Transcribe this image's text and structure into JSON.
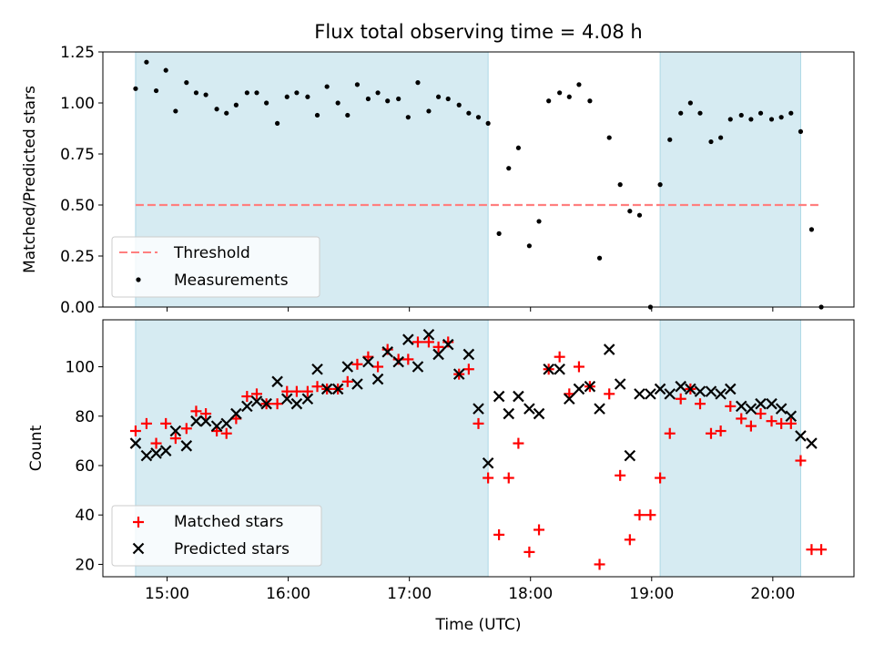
{
  "chart_data": [
    {
      "type": "scatter",
      "title": "Flux total observing time = 4.08 h",
      "xlabel": "",
      "ylabel": "Matched/Predicted stars",
      "xlim_hours": [
        14.47,
        20.67
      ],
      "ylim": [
        0,
        1.25
      ],
      "yticks": [
        0.0,
        0.25,
        0.5,
        0.75,
        1.0,
        1.25
      ],
      "ytick_labels": [
        "0.00",
        "0.25",
        "0.50",
        "0.75",
        "1.00",
        "1.25"
      ],
      "shaded_intervals_hours": [
        [
          14.74,
          17.65
        ],
        [
          19.07,
          20.23
        ]
      ],
      "threshold": {
        "name": "Threshold",
        "y": 0.5,
        "x_range_hours": [
          14.74,
          20.4
        ],
        "color": "#ff7f7f"
      },
      "legend": {
        "position": "lower-left",
        "entries": [
          "Threshold",
          "Measurements"
        ]
      },
      "series": [
        {
          "name": "Measurements",
          "color": "#000000",
          "marker": "dot",
          "x_hours": [
            14.74,
            14.83,
            14.91,
            14.99,
            15.07,
            15.16,
            15.24,
            15.32,
            15.41,
            15.49,
            15.57,
            15.66,
            15.74,
            15.82,
            15.91,
            15.99,
            16.07,
            16.16,
            16.24,
            16.32,
            16.41,
            16.49,
            16.57,
            16.66,
            16.74,
            16.82,
            16.91,
            16.99,
            17.07,
            17.16,
            17.24,
            17.32,
            17.41,
            17.49,
            17.57,
            17.65,
            17.74,
            17.82,
            17.9,
            17.99,
            18.07,
            18.15,
            18.24,
            18.32,
            18.4,
            18.49,
            18.57,
            18.65,
            18.74,
            18.82,
            18.9,
            18.99,
            19.07,
            19.15,
            19.24,
            19.32,
            19.4,
            19.49,
            19.57,
            19.65,
            19.74,
            19.82,
            19.9,
            19.99,
            20.07,
            20.15,
            20.23,
            20.32,
            20.4
          ],
          "y": [
            1.07,
            1.2,
            1.06,
            1.16,
            0.96,
            1.1,
            1.05,
            1.04,
            0.97,
            0.95,
            0.99,
            1.05,
            1.05,
            1.0,
            0.9,
            1.03,
            1.05,
            1.03,
            0.94,
            1.08,
            1.0,
            0.94,
            1.09,
            1.02,
            1.05,
            1.01,
            1.02,
            0.93,
            1.1,
            0.96,
            1.03,
            1.02,
            0.99,
            0.95,
            0.93,
            0.9,
            0.36,
            0.68,
            0.78,
            0.3,
            0.42,
            1.01,
            1.05,
            1.03,
            1.09,
            1.01,
            0.24,
            0.83,
            0.6,
            0.47,
            0.45,
            0.0,
            0.6,
            0.82,
            0.95,
            1.0,
            0.95,
            0.81,
            0.83,
            0.92,
            0.94,
            0.92,
            0.95,
            0.92,
            0.93,
            0.95,
            0.86,
            0.38,
            0.0
          ]
        }
      ]
    },
    {
      "type": "scatter",
      "title": "",
      "xlabel": "Time (UTC)",
      "ylabel": "Count",
      "xlim_hours": [
        14.47,
        20.67
      ],
      "ylim": [
        15,
        119
      ],
      "xticks_hours": [
        15,
        16,
        17,
        18,
        19,
        20
      ],
      "xtick_labels": [
        "15:00",
        "16:00",
        "17:00",
        "18:00",
        "19:00",
        "20:00"
      ],
      "yticks": [
        20,
        40,
        60,
        80,
        100
      ],
      "ytick_labels": [
        "20",
        "40",
        "60",
        "80",
        "100"
      ],
      "shaded_intervals_hours": [
        [
          14.74,
          17.65
        ],
        [
          19.07,
          20.23
        ]
      ],
      "legend": {
        "position": "lower-left",
        "entries": [
          "Matched stars",
          "Predicted stars"
        ]
      },
      "series": [
        {
          "name": "Matched stars",
          "color": "#ff0000",
          "marker": "plus",
          "x_hours": [
            14.74,
            14.83,
            14.91,
            14.99,
            15.07,
            15.16,
            15.24,
            15.32,
            15.41,
            15.49,
            15.57,
            15.66,
            15.74,
            15.82,
            15.91,
            15.99,
            16.07,
            16.16,
            16.24,
            16.32,
            16.41,
            16.49,
            16.57,
            16.66,
            16.74,
            16.82,
            16.91,
            16.99,
            17.07,
            17.16,
            17.24,
            17.32,
            17.41,
            17.49,
            17.57,
            17.65,
            17.74,
            17.82,
            17.9,
            17.99,
            18.07,
            18.15,
            18.24,
            18.32,
            18.4,
            18.49,
            18.57,
            18.65,
            18.74,
            18.82,
            18.9,
            18.99,
            19.07,
            19.15,
            19.24,
            19.32,
            19.4,
            19.49,
            19.57,
            19.65,
            19.74,
            19.82,
            19.9,
            19.99,
            20.07,
            20.15,
            20.23,
            20.32,
            20.4
          ],
          "y": [
            74,
            77,
            69,
            77,
            71,
            75,
            82,
            81,
            74,
            73,
            79,
            88,
            89,
            85,
            85,
            90,
            90,
            90,
            92,
            91,
            91,
            94,
            101,
            104,
            100,
            107,
            103,
            103,
            110,
            110,
            108,
            110,
            97,
            99,
            77,
            55,
            32,
            55,
            69,
            25,
            34,
            99,
            104,
            89,
            100,
            92,
            20,
            89,
            56,
            30,
            40,
            40,
            55,
            73,
            87,
            91,
            85,
            73,
            74,
            84,
            79,
            76,
            81,
            78,
            77,
            77,
            62,
            26,
            26
          ]
        },
        {
          "name": "Predicted stars",
          "color": "#000000",
          "marker": "x",
          "x_hours": [
            14.74,
            14.83,
            14.91,
            14.99,
            15.07,
            15.16,
            15.24,
            15.32,
            15.41,
            15.49,
            15.57,
            15.66,
            15.74,
            15.82,
            15.91,
            15.99,
            16.07,
            16.16,
            16.24,
            16.32,
            16.41,
            16.49,
            16.57,
            16.66,
            16.74,
            16.82,
            16.91,
            16.99,
            17.07,
            17.16,
            17.24,
            17.32,
            17.41,
            17.49,
            17.57,
            17.65,
            17.74,
            17.82,
            17.9,
            17.99,
            18.07,
            18.15,
            18.24,
            18.32,
            18.4,
            18.49,
            18.57,
            18.65,
            18.74,
            18.82,
            18.9,
            18.99,
            19.07,
            19.15,
            19.24,
            19.32,
            19.4,
            19.49,
            19.57,
            19.65,
            19.74,
            19.82,
            19.9,
            19.99,
            20.07,
            20.15,
            20.23,
            20.32
          ],
          "y": [
            69,
            64,
            65,
            66,
            74,
            68,
            78,
            78,
            76,
            77,
            81,
            84,
            86,
            85,
            94,
            87,
            85,
            87,
            99,
            91,
            91,
            100,
            93,
            102,
            95,
            106,
            102,
            111,
            100,
            113,
            105,
            109,
            97,
            105,
            83,
            61,
            88,
            81,
            88,
            83,
            81,
            99,
            99,
            87,
            91,
            92,
            83,
            107,
            93,
            64,
            89,
            89,
            91,
            89,
            92,
            91,
            90,
            90,
            89,
            91,
            84,
            83,
            85,
            85,
            83,
            80,
            72,
            69
          ]
        }
      ]
    }
  ]
}
